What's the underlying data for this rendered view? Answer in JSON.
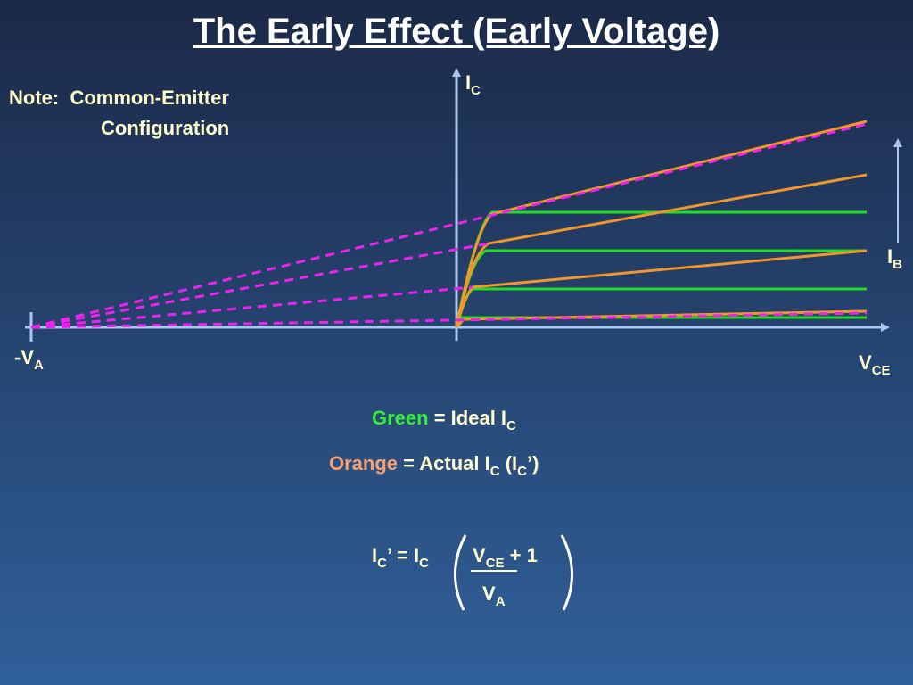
{
  "title": "The Early Effect (Early Voltage)",
  "note": {
    "line1": "Note:  Common-Emitter",
    "line2": "Configuration"
  },
  "axes": {
    "y_label": {
      "main": "I",
      "sub": "C"
    },
    "x_label": {
      "main": "V",
      "sub": "CE"
    },
    "intercept_label": {
      "main": "-V",
      "sub": "A"
    },
    "ib_label": {
      "main": "I",
      "sub": "B"
    }
  },
  "legend": {
    "green": {
      "word": "Green",
      "text": " = Ideal I",
      "sub": "C"
    },
    "orange": {
      "word": "Orange",
      "text": " = Actual I",
      "sub": "C",
      "tail": " (I",
      "tail_sub": "C",
      "end": "’)"
    }
  },
  "formula": {
    "lhs_main": "I",
    "lhs_sub": "C",
    "lhs_mid": "’ = I",
    "lhs_sub2": "C",
    "num_main": "V",
    "num_sub": "CE",
    "num_tail": " + 1",
    "den_main": "V",
    "den_sub": "A"
  }
}
